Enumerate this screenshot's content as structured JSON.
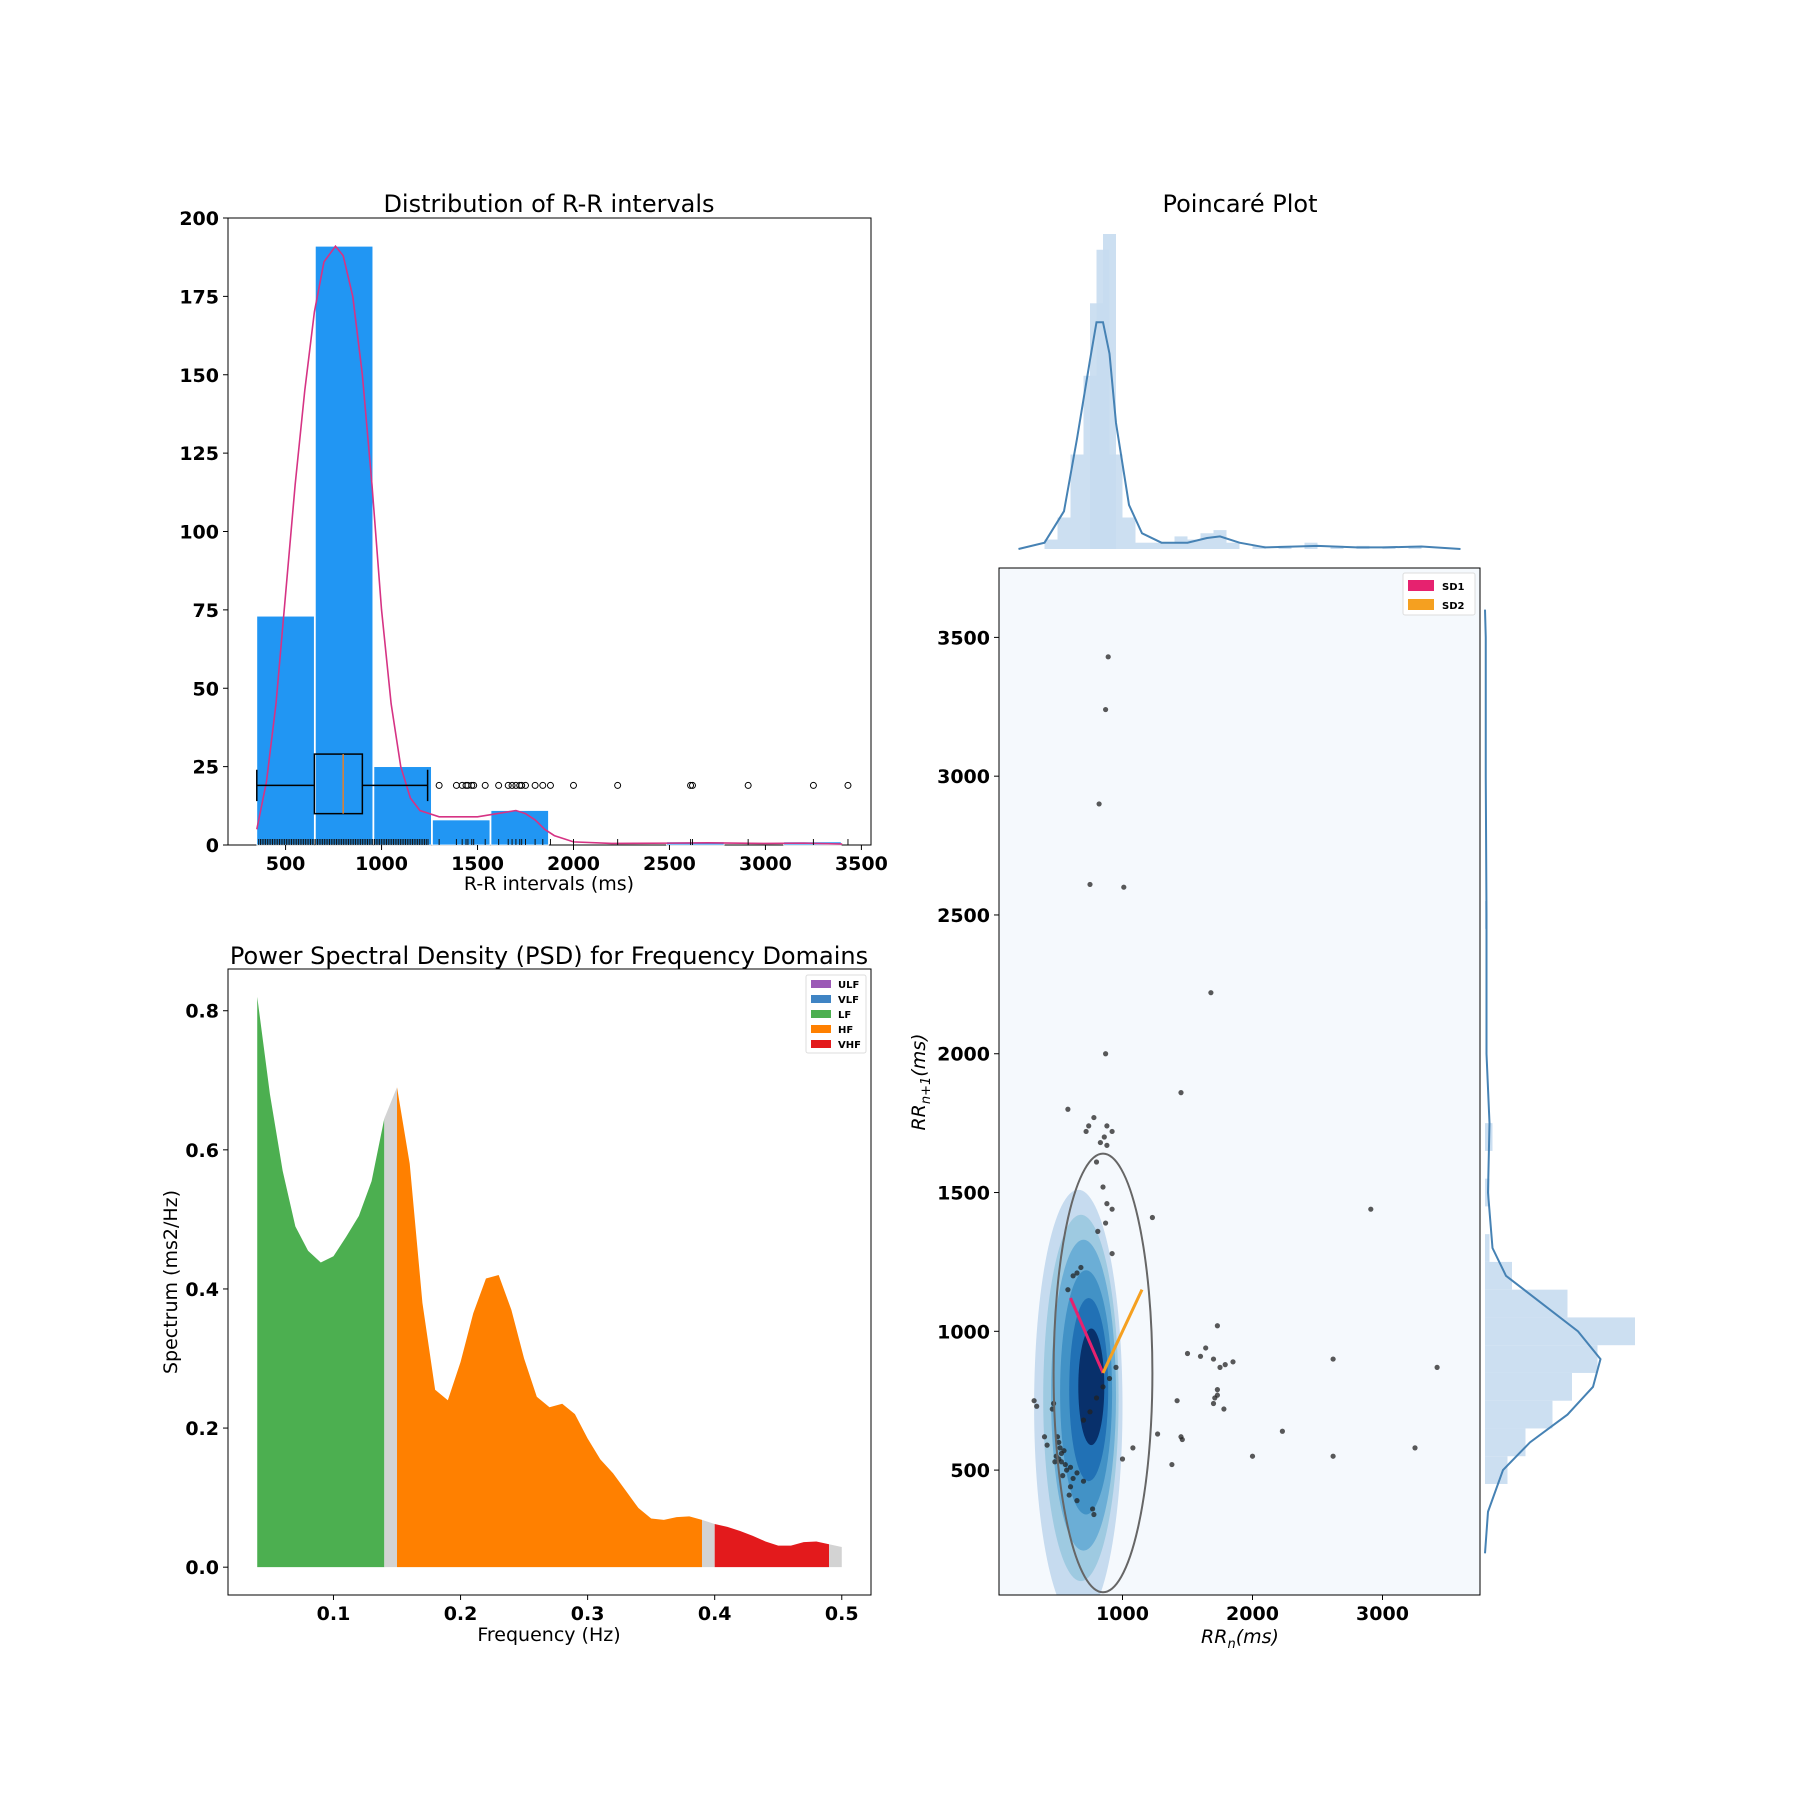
{
  "colors": {
    "hist_bar": "#2196F3",
    "kde_line": "#D63384",
    "ULF": "#9B59B6",
    "VLF": "#3F84C4",
    "LF": "#4CAF50",
    "HF": "#FF8000",
    "VHF": "#E31A1C",
    "gap": "#D3D3D3",
    "SD1": "#E6226F",
    "SD2": "#F5A020",
    "poincare_marginal": "#4682B4",
    "poincare_bg": "#F5F9FD"
  },
  "chart_data": [
    {
      "id": "rr_distribution",
      "type": "bar",
      "title": "Distribution of R-R intervals",
      "xlabel": "R-R intervals (ms)",
      "ylabel": "",
      "xlim": [
        200,
        3550
      ],
      "ylim": [
        0,
        200
      ],
      "xticks": [
        500,
        1000,
        1500,
        2000,
        2500,
        3000,
        3500
      ],
      "yticks": [
        0,
        25,
        50,
        75,
        100,
        125,
        150,
        175,
        200
      ],
      "bins": [
        {
          "x0": 350,
          "x1": 655,
          "value": 73
        },
        {
          "x0": 655,
          "x1": 960,
          "value": 191
        },
        {
          "x0": 960,
          "x1": 1265,
          "value": 25
        },
        {
          "x0": 1265,
          "x1": 1570,
          "value": 8
        },
        {
          "x0": 1570,
          "x1": 1875,
          "value": 11
        },
        {
          "x0": 1875,
          "x1": 2180,
          "value": 0
        },
        {
          "x0": 2180,
          "x1": 2485,
          "value": 0
        },
        {
          "x0": 2485,
          "x1": 2790,
          "value": 1
        },
        {
          "x0": 2790,
          "x1": 3095,
          "value": 0
        },
        {
          "x0": 3095,
          "x1": 3400,
          "value": 1
        }
      ],
      "kde": [
        [
          350,
          5
        ],
        [
          400,
          20
        ],
        [
          450,
          45
        ],
        [
          500,
          80
        ],
        [
          550,
          115
        ],
        [
          600,
          145
        ],
        [
          650,
          170
        ],
        [
          700,
          186
        ],
        [
          760,
          191
        ],
        [
          800,
          188
        ],
        [
          850,
          175
        ],
        [
          900,
          150
        ],
        [
          950,
          115
        ],
        [
          1000,
          75
        ],
        [
          1050,
          45
        ],
        [
          1100,
          25
        ],
        [
          1150,
          15
        ],
        [
          1200,
          11
        ],
        [
          1300,
          9
        ],
        [
          1400,
          9
        ],
        [
          1500,
          9
        ],
        [
          1600,
          10
        ],
        [
          1700,
          11
        ],
        [
          1750,
          10
        ],
        [
          1800,
          8
        ],
        [
          1850,
          5
        ],
        [
          1900,
          3
        ],
        [
          2000,
          1
        ],
        [
          2200,
          0.5
        ],
        [
          2500,
          0.6
        ],
        [
          2700,
          0.7
        ],
        [
          3000,
          0.5
        ],
        [
          3200,
          0.6
        ],
        [
          3400,
          0.3
        ]
      ],
      "boxplot": {
        "min": 350,
        "q1": 650,
        "median": 800,
        "q3": 900,
        "max": 1240,
        "y_center": 19,
        "y_low": 10,
        "y_high": 29
      },
      "outliers": [
        1300,
        1390,
        1420,
        1440,
        1450,
        1470,
        1480,
        1540,
        1610,
        1660,
        1680,
        1700,
        1720,
        1730,
        1750,
        1800,
        1840,
        1880,
        2000,
        2230,
        2610,
        2620,
        2910,
        3250,
        3430
      ]
    },
    {
      "id": "psd",
      "type": "area",
      "title": "Power Spectral Density (PSD) for Frequency Domains",
      "xlabel": "Frequency (Hz)",
      "ylabel": "Spectrum (ms2/Hz)",
      "xlim": [
        0.017,
        0.523
      ],
      "ylim": [
        -0.04,
        0.86
      ],
      "xticks": [
        0.1,
        0.2,
        0.3,
        0.4,
        0.5
      ],
      "yticks": [
        0.0,
        0.2,
        0.4,
        0.6,
        0.8
      ],
      "legend": [
        "ULF",
        "VLF",
        "LF",
        "HF",
        "VHF"
      ],
      "legend_position": "top-right",
      "spectrum": [
        [
          0.04,
          0.82
        ],
        [
          0.05,
          0.68
        ],
        [
          0.06,
          0.57
        ],
        [
          0.07,
          0.49
        ],
        [
          0.08,
          0.455
        ],
        [
          0.09,
          0.438
        ],
        [
          0.1,
          0.447
        ],
        [
          0.11,
          0.475
        ],
        [
          0.12,
          0.505
        ],
        [
          0.13,
          0.555
        ],
        [
          0.14,
          0.645
        ],
        [
          0.15,
          0.69
        ],
        [
          0.16,
          0.58
        ],
        [
          0.17,
          0.38
        ],
        [
          0.18,
          0.255
        ],
        [
          0.19,
          0.24
        ],
        [
          0.2,
          0.295
        ],
        [
          0.21,
          0.365
        ],
        [
          0.22,
          0.415
        ],
        [
          0.23,
          0.42
        ],
        [
          0.24,
          0.37
        ],
        [
          0.25,
          0.3
        ],
        [
          0.26,
          0.245
        ],
        [
          0.27,
          0.23
        ],
        [
          0.28,
          0.235
        ],
        [
          0.29,
          0.22
        ],
        [
          0.3,
          0.185
        ],
        [
          0.31,
          0.155
        ],
        [
          0.32,
          0.135
        ],
        [
          0.33,
          0.11
        ],
        [
          0.34,
          0.085
        ],
        [
          0.35,
          0.07
        ],
        [
          0.36,
          0.068
        ],
        [
          0.37,
          0.072
        ],
        [
          0.38,
          0.073
        ],
        [
          0.39,
          0.068
        ],
        [
          0.4,
          0.062
        ],
        [
          0.41,
          0.058
        ],
        [
          0.42,
          0.052
        ],
        [
          0.43,
          0.045
        ],
        [
          0.44,
          0.037
        ],
        [
          0.45,
          0.031
        ],
        [
          0.46,
          0.031
        ],
        [
          0.47,
          0.036
        ],
        [
          0.48,
          0.037
        ],
        [
          0.49,
          0.033
        ],
        [
          0.5,
          0.029
        ]
      ],
      "bands": [
        {
          "name": "LF",
          "from": 0.04,
          "to": 0.14
        },
        {
          "name": "gap",
          "from": 0.14,
          "to": 0.15
        },
        {
          "name": "HF",
          "from": 0.15,
          "to": 0.39
        },
        {
          "name": "gap",
          "from": 0.39,
          "to": 0.4
        },
        {
          "name": "VHF",
          "from": 0.4,
          "to": 0.49
        },
        {
          "name": "gap",
          "from": 0.49,
          "to": 0.5
        }
      ]
    },
    {
      "id": "poincare",
      "type": "scatter",
      "title": "Poincaré Plot",
      "xlabel": "RR_n(ms)",
      "ylabel": "RR_n+1(ms)",
      "xlim": [
        50,
        3750
      ],
      "ylim": [
        50,
        3750
      ],
      "xticks": [
        1000,
        2000,
        3000
      ],
      "yticks": [
        500,
        1000,
        1500,
        2000,
        2500,
        3000,
        3500
      ],
      "legend": [
        "SD1",
        "SD2"
      ],
      "legend_position": "top-right",
      "center": [
        850,
        850
      ],
      "sd1_end": [
        600,
        1120
      ],
      "sd2_end": [
        1150,
        1150
      ],
      "ellipse": {
        "rx": 380,
        "ry": 790
      },
      "points": [
        [
          890,
          3430
        ],
        [
          870,
          3240
        ],
        [
          820,
          2900
        ],
        [
          750,
          2610
        ],
        [
          1010,
          2600
        ],
        [
          1680,
          2220
        ],
        [
          870,
          2000
        ],
        [
          1450,
          1860
        ],
        [
          580,
          1800
        ],
        [
          780,
          1770
        ],
        [
          740,
          1740
        ],
        [
          880,
          1740
        ],
        [
          720,
          1720
        ],
        [
          920,
          1720
        ],
        [
          860,
          1700
        ],
        [
          830,
          1680
        ],
        [
          880,
          1670
        ],
        [
          800,
          1610
        ],
        [
          850,
          1520
        ],
        [
          880,
          1460
        ],
        [
          920,
          1440
        ],
        [
          2910,
          1440
        ],
        [
          1230,
          1410
        ],
        [
          870,
          1390
        ],
        [
          810,
          1360
        ],
        [
          920,
          1280
        ],
        [
          680,
          1230
        ],
        [
          650,
          1210
        ],
        [
          620,
          1200
        ],
        [
          580,
          1150
        ],
        [
          1730,
          1020
        ],
        [
          1640,
          940
        ],
        [
          1500,
          920
        ],
        [
          1600,
          910
        ],
        [
          1700,
          900
        ],
        [
          2620,
          900
        ],
        [
          1790,
          880
        ],
        [
          1750,
          870
        ],
        [
          1850,
          890
        ],
        [
          3420,
          870
        ],
        [
          1730,
          790
        ],
        [
          1730,
          770
        ],
        [
          1710,
          760
        ],
        [
          1700,
          740
        ],
        [
          1420,
          750
        ],
        [
          320,
          750
        ],
        [
          340,
          730
        ],
        [
          470,
          740
        ],
        [
          460,
          720
        ],
        [
          1780,
          720
        ],
        [
          1270,
          630
        ],
        [
          1450,
          620
        ],
        [
          1460,
          610
        ],
        [
          2230,
          640
        ],
        [
          400,
          620
        ],
        [
          500,
          620
        ],
        [
          510,
          600
        ],
        [
          420,
          590
        ],
        [
          520,
          580
        ],
        [
          550,
          570
        ],
        [
          530,
          560
        ],
        [
          490,
          550
        ],
        [
          510,
          540
        ],
        [
          530,
          530
        ],
        [
          480,
          530
        ],
        [
          560,
          520
        ],
        [
          600,
          510
        ],
        [
          650,
          490
        ],
        [
          570,
          500
        ],
        [
          540,
          480
        ],
        [
          620,
          470
        ],
        [
          700,
          460
        ],
        [
          1000,
          540
        ],
        [
          1080,
          580
        ],
        [
          1380,
          520
        ],
        [
          2000,
          550
        ],
        [
          2620,
          550
        ],
        [
          3250,
          580
        ],
        [
          600,
          440
        ],
        [
          590,
          410
        ],
        [
          650,
          390
        ],
        [
          770,
          360
        ],
        [
          780,
          340
        ],
        [
          700,
          680
        ],
        [
          750,
          710
        ],
        [
          800,
          760
        ],
        [
          850,
          800
        ],
        [
          900,
          830
        ],
        [
          950,
          870
        ]
      ],
      "kde_levels": [
        {
          "rx": 340,
          "ry": 780,
          "cx": 660,
          "cy": 730
        },
        {
          "rx": 290,
          "ry": 660,
          "cx": 680,
          "cy": 760
        },
        {
          "rx": 250,
          "ry": 560,
          "cx": 700,
          "cy": 770
        },
        {
          "rx": 200,
          "ry": 440,
          "cx": 720,
          "cy": 780
        },
        {
          "rx": 150,
          "ry": 330,
          "cx": 740,
          "cy": 790
        },
        {
          "rx": 100,
          "ry": 210,
          "cx": 760,
          "cy": 800
        }
      ],
      "top_hist": [
        [
          450,
          0.03
        ],
        [
          550,
          0.1
        ],
        [
          650,
          0.3
        ],
        [
          750,
          0.55
        ],
        [
          800,
          0.78
        ],
        [
          850,
          0.95
        ],
        [
          900,
          1.0
        ],
        [
          950,
          0.3
        ],
        [
          1050,
          0.1
        ],
        [
          1150,
          0.02
        ],
        [
          1250,
          0.02
        ],
        [
          1350,
          0.02
        ],
        [
          1450,
          0.04
        ],
        [
          1550,
          0.03
        ],
        [
          1650,
          0.05
        ],
        [
          1750,
          0.06
        ],
        [
          1850,
          0.02
        ],
        [
          2050,
          0.01
        ],
        [
          2250,
          0.01
        ],
        [
          2450,
          0.02
        ],
        [
          2650,
          0.01
        ],
        [
          2850,
          0.01
        ],
        [
          3050,
          0.005
        ],
        [
          3250,
          0.01
        ]
      ],
      "top_kde": [
        [
          200,
          0
        ],
        [
          400,
          0.02
        ],
        [
          550,
          0.12
        ],
        [
          650,
          0.35
        ],
        [
          750,
          0.6
        ],
        [
          800,
          0.72
        ],
        [
          850,
          0.72
        ],
        [
          900,
          0.62
        ],
        [
          950,
          0.4
        ],
        [
          1050,
          0.14
        ],
        [
          1150,
          0.05
        ],
        [
          1300,
          0.02
        ],
        [
          1500,
          0.02
        ],
        [
          1650,
          0.035
        ],
        [
          1750,
          0.04
        ],
        [
          1900,
          0.02
        ],
        [
          2100,
          0.005
        ],
        [
          2500,
          0.01
        ],
        [
          2800,
          0.005
        ],
        [
          3000,
          0.005
        ],
        [
          3300,
          0.008
        ],
        [
          3600,
          0
        ]
      ],
      "right_hist": [
        [
          500,
          0.15
        ],
        [
          600,
          0.27
        ],
        [
          700,
          0.45
        ],
        [
          800,
          0.58
        ],
        [
          900,
          0.75
        ],
        [
          1000,
          1.0
        ],
        [
          1100,
          0.55
        ],
        [
          1200,
          0.18
        ],
        [
          1300,
          0.03
        ],
        [
          1500,
          0.03
        ],
        [
          1700,
          0.05
        ],
        [
          2500,
          0.01
        ]
      ],
      "right_kde": [
        [
          200,
          0
        ],
        [
          350,
          0.02
        ],
        [
          500,
          0.12
        ],
        [
          600,
          0.3
        ],
        [
          700,
          0.55
        ],
        [
          800,
          0.72
        ],
        [
          900,
          0.77
        ],
        [
          1000,
          0.62
        ],
        [
          1100,
          0.38
        ],
        [
          1200,
          0.14
        ],
        [
          1300,
          0.05
        ],
        [
          1500,
          0.02
        ],
        [
          1750,
          0.03
        ],
        [
          2000,
          0.01
        ],
        [
          2500,
          0.01
        ],
        [
          3000,
          0.005
        ],
        [
          3500,
          0.005
        ],
        [
          3600,
          0
        ]
      ]
    }
  ]
}
